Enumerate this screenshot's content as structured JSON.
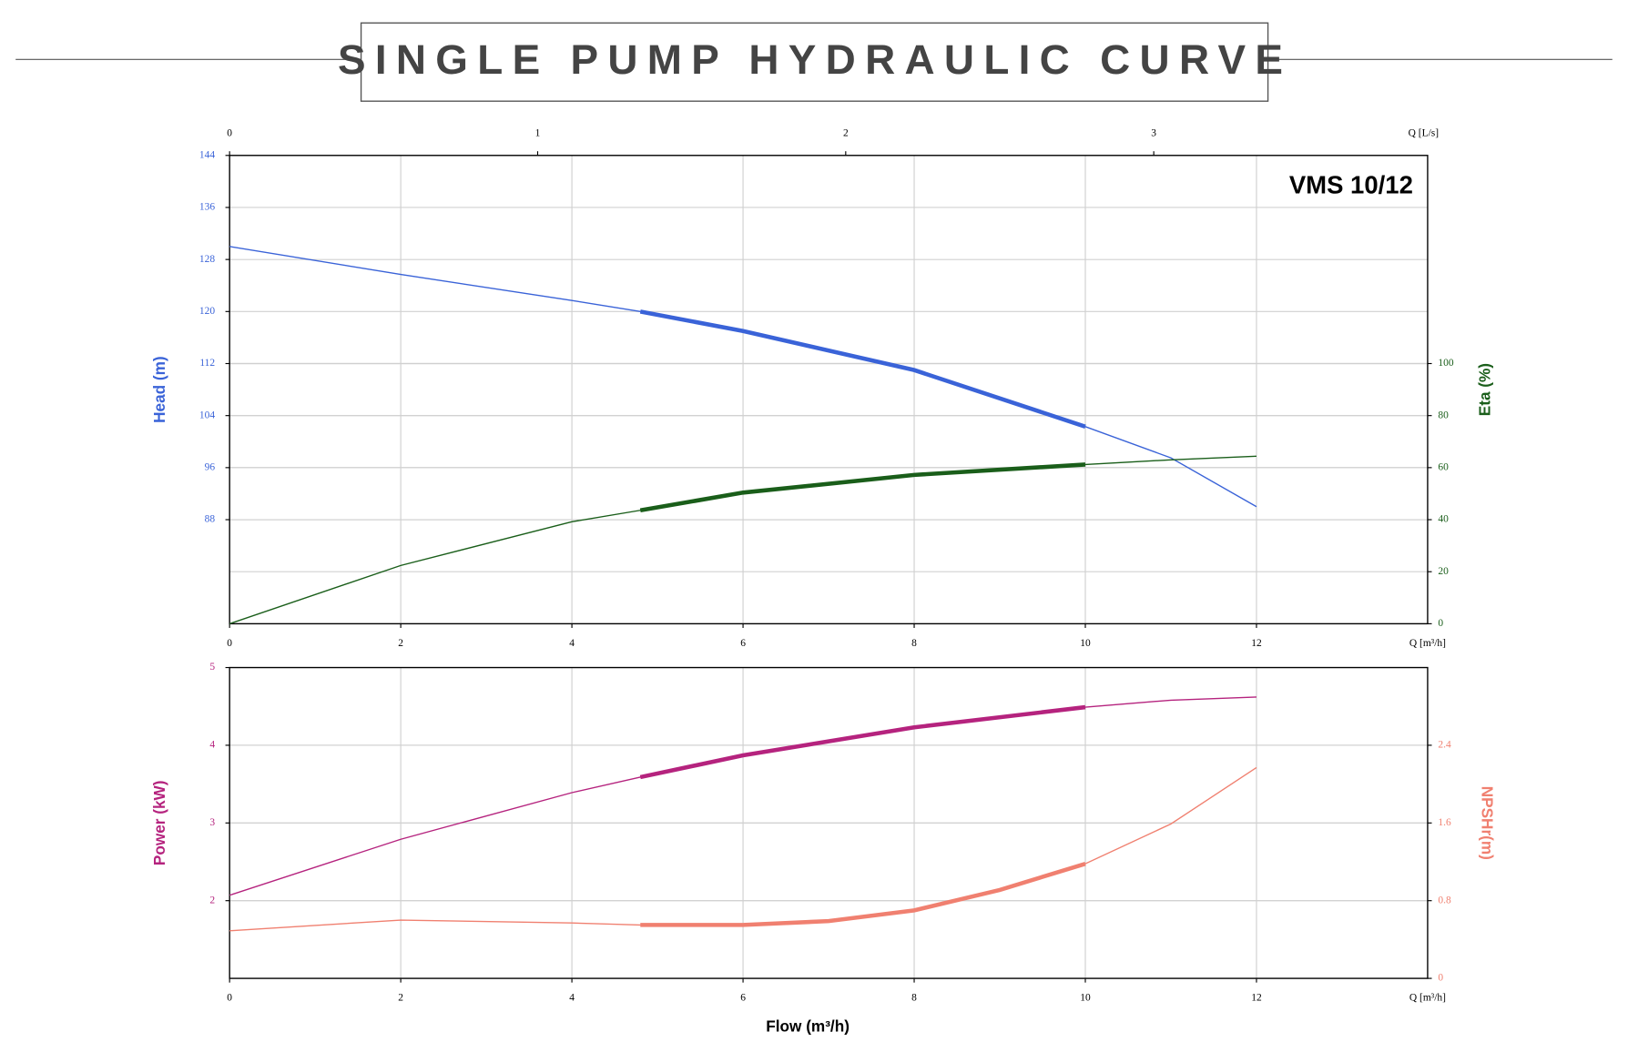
{
  "title": "SINGLE PUMP HYDRAULIC CURVE",
  "chart_data": [
    {
      "type": "line",
      "annotation": "VMS 10/12",
      "xlim": [
        0,
        14
      ],
      "xticks": [
        0,
        2,
        4,
        6,
        8,
        10,
        12
      ],
      "xlabel": "Q [m³/h]",
      "x2lim": [
        0,
        3.889
      ],
      "x2ticks": [
        0,
        1,
        2,
        3
      ],
      "x2label": "Q [L/s]",
      "ylim": [
        72,
        144
      ],
      "yticks": [
        88,
        96,
        104,
        112,
        120,
        128,
        136,
        144
      ],
      "ylabel": "Head (m)",
      "y2lim": [
        0,
        180
      ],
      "y2ticks": [
        0,
        20,
        40,
        60,
        80,
        100
      ],
      "y2label": "Eta (%)",
      "grid": true,
      "highlight_x": [
        4.8,
        10
      ],
      "series": [
        {
          "name": "Head (m)",
          "color": "#3a63d8",
          "x": [
            0,
            2,
            4,
            4.8,
            6,
            8,
            10,
            11,
            12
          ],
          "values": [
            130,
            125.7,
            121.7,
            120,
            117,
            111,
            102.3,
            97.5,
            90
          ]
        },
        {
          "name": "Eta (%)",
          "color": "#1a5e1a",
          "axis": "y2",
          "x": [
            0,
            2,
            4,
            4.8,
            6,
            8,
            10,
            11,
            12
          ],
          "values": [
            0,
            22.4,
            39.2,
            43.6,
            50.4,
            57.2,
            61.2,
            63,
            64.4
          ]
        }
      ]
    },
    {
      "type": "line",
      "xlim": [
        0,
        14
      ],
      "xticks": [
        0,
        2,
        4,
        6,
        8,
        10,
        12
      ],
      "xlabel": "Q [m³/h]",
      "ylim": [
        1,
        5
      ],
      "yticks": [
        2,
        3,
        4,
        5
      ],
      "ylabel": "Power (kW)",
      "y2lim": [
        0,
        3.2
      ],
      "y2ticks": [
        0,
        0.8,
        1.6,
        2.4
      ],
      "y2label": "NPSHr(m)",
      "grid": true,
      "highlight_x": [
        4.8,
        10
      ],
      "footer": "Flow (m³/h)",
      "series": [
        {
          "name": "Power (kW)",
          "color": "#b5237e",
          "x": [
            0,
            2,
            4,
            4.8,
            6,
            8,
            10,
            11,
            12
          ],
          "values": [
            2.07,
            2.79,
            3.39,
            3.59,
            3.87,
            4.23,
            4.49,
            4.58,
            4.62
          ]
        },
        {
          "name": "NPSHr(m)",
          "color": "#f08070",
          "axis": "y2",
          "x": [
            0,
            2,
            4,
            4.8,
            6,
            7,
            8,
            9,
            10,
            11,
            12
          ],
          "values": [
            0.49,
            0.6,
            0.57,
            0.55,
            0.55,
            0.59,
            0.7,
            0.91,
            1.18,
            1.59,
            2.17
          ]
        }
      ]
    }
  ]
}
